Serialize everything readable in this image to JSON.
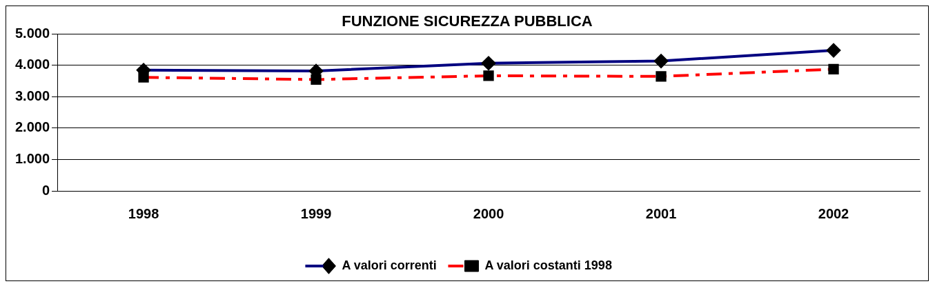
{
  "chart_data": {
    "type": "line",
    "title": "FUNZIONE SICUREZZA PUBBLICA",
    "categories": [
      "1998",
      "1999",
      "2000",
      "2001",
      "2002"
    ],
    "series": [
      {
        "name": "A valori correnti",
        "color": "#000080",
        "values": [
          3850,
          3820,
          4070,
          4140,
          4480
        ],
        "marker": "diamond",
        "line_style": "solid"
      },
      {
        "name": "A valori costanti 1998",
        "color": "#ff0000",
        "values": [
          3620,
          3550,
          3670,
          3650,
          3880
        ],
        "marker": "square",
        "line_style": "dashed"
      }
    ],
    "ylim": [
      0,
      5000
    ],
    "yticks": [
      {
        "value": 0,
        "label": "0"
      },
      {
        "value": 1000,
        "label": "1.000"
      },
      {
        "value": 2000,
        "label": "2.000"
      },
      {
        "value": 3000,
        "label": "3.000"
      },
      {
        "value": 4000,
        "label": "4.000"
      },
      {
        "value": 5000,
        "label": "5.000"
      }
    ],
    "grid": "y",
    "legend": "bottom"
  }
}
